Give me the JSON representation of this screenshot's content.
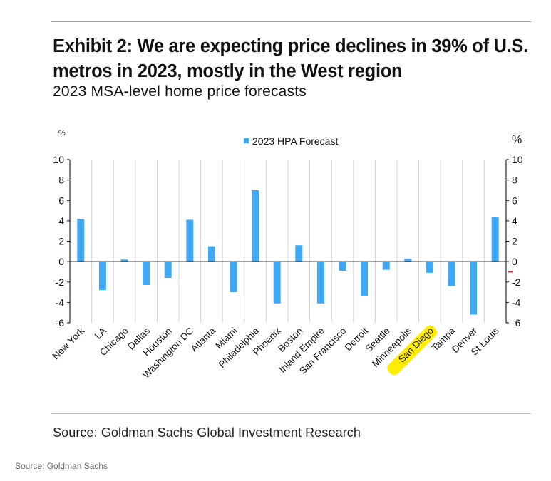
{
  "exhibit": {
    "title": "Exhibit 2: We are expecting price declines in 39% of U.S. metros in 2023, mostly in the West region",
    "subtitle": "2023 MSA-level home price forecasts",
    "source": "Source: Goldman Sachs Global Investment Research"
  },
  "page_source": "Source: Goldman Sachs",
  "chart_data": {
    "type": "bar",
    "legend": "2023 HPA Forecast",
    "legend_position": "top-center",
    "y_unit_left": "%",
    "y_unit_right": "%",
    "ylim": [
      -6,
      10
    ],
    "yticks": [
      -6,
      -4,
      -2,
      0,
      2,
      4,
      6,
      8,
      10
    ],
    "grid": "vertical",
    "highlighted_category": "San Diego",
    "categories": [
      "New York",
      "LA",
      "Chicago",
      "Dallas",
      "Houston",
      "Washington DC",
      "Atlanta",
      "Miami",
      "Philadelphia",
      "Phoenix",
      "Boston",
      "Inland Empire",
      "San Francisco",
      "Detroit",
      "Seattle",
      "Minneapolis",
      "San Diego",
      "Tampa",
      "Denver",
      "St Louis"
    ],
    "series": [
      {
        "name": "2023 HPA Forecast",
        "color": "#3fa9f5",
        "values": [
          4.2,
          -2.8,
          0.2,
          -2.3,
          -1.6,
          4.1,
          1.5,
          -3.0,
          7.0,
          -4.1,
          1.6,
          -4.1,
          -0.9,
          -3.4,
          -0.8,
          0.3,
          -1.1,
          -2.4,
          -5.2,
          4.4
        ]
      }
    ]
  },
  "colors": {
    "bar": "#3fa9f5",
    "highlight": "#ffec00",
    "grid": "#d4d4d4",
    "axis": "#000000",
    "marker": "#d9252a"
  }
}
